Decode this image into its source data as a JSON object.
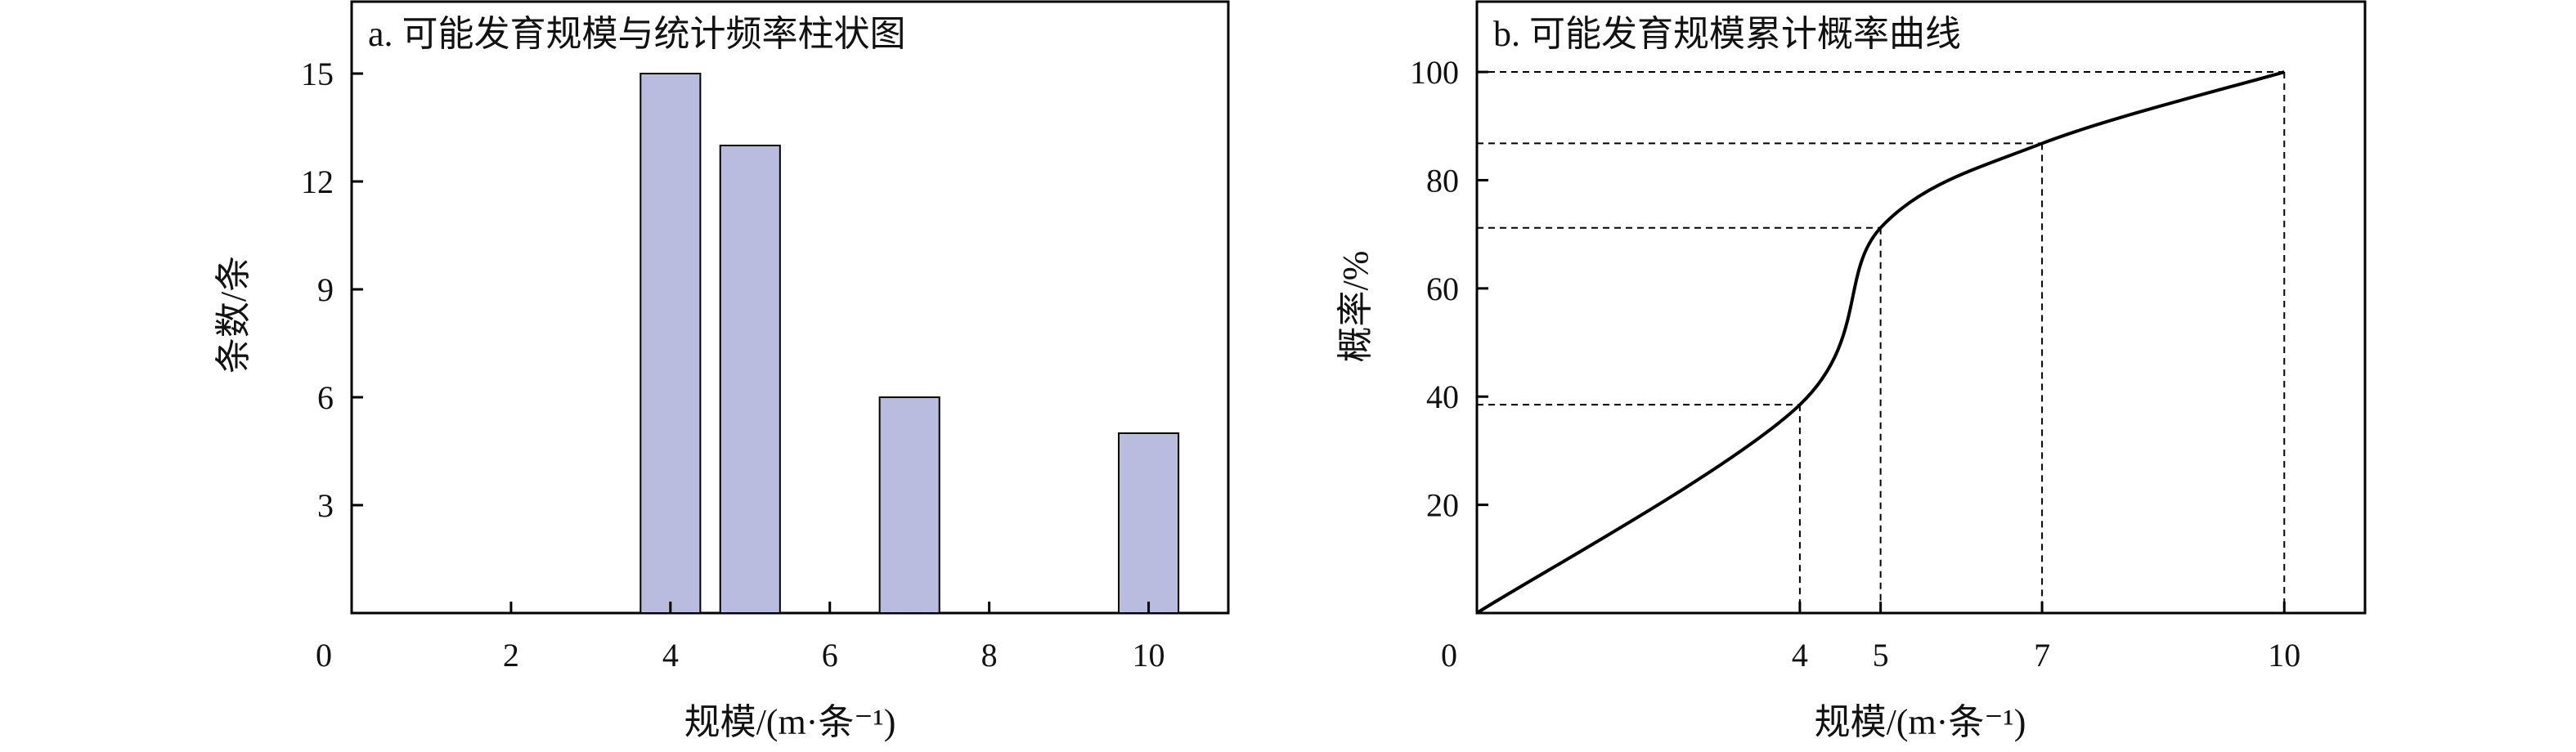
{
  "chart_data": [
    {
      "type": "bar",
      "title": "a. 可能发育规模与统计频率柱状图",
      "xlabel": "规模/(m·条⁻¹)",
      "ylabel": "条数/条",
      "xlim": [
        0,
        11
      ],
      "ylim": [
        0,
        17
      ],
      "x_ticks": [
        0,
        2,
        4,
        6,
        8,
        10
      ],
      "y_ticks": [
        3,
        6,
        9,
        12,
        15
      ],
      "y_origin_label": "0",
      "bar_width": 0.75,
      "x": [
        4,
        5,
        7,
        10
      ],
      "values": [
        15,
        13,
        6,
        5
      ],
      "bar_color": "#b9bcdf",
      "grid": false
    },
    {
      "type": "line",
      "title": "b. 可能发育规模累计概率曲线",
      "xlabel": "规模/(m·条⁻¹)",
      "ylabel": "概率/%",
      "xlim": [
        0,
        11
      ],
      "ylim": [
        0,
        113
      ],
      "x_ticks": [
        4,
        5,
        7,
        10
      ],
      "x_tick_labels": [
        "4",
        "5",
        "7",
        "10"
      ],
      "x_origin_label": "0",
      "y_ticks": [
        20,
        40,
        60,
        80,
        100
      ],
      "x_positions": [
        0,
        4,
        5,
        7,
        10
      ],
      "values": [
        0,
        38.5,
        71.2,
        86.8,
        100
      ],
      "curve_color": "#000000",
      "reference_points": [
        {
          "x": 4,
          "y": 38.5
        },
        {
          "x": 5,
          "y": 71.2
        },
        {
          "x": 7,
          "y": 86.8
        },
        {
          "x": 10,
          "y": 100
        }
      ],
      "grid": false
    }
  ]
}
